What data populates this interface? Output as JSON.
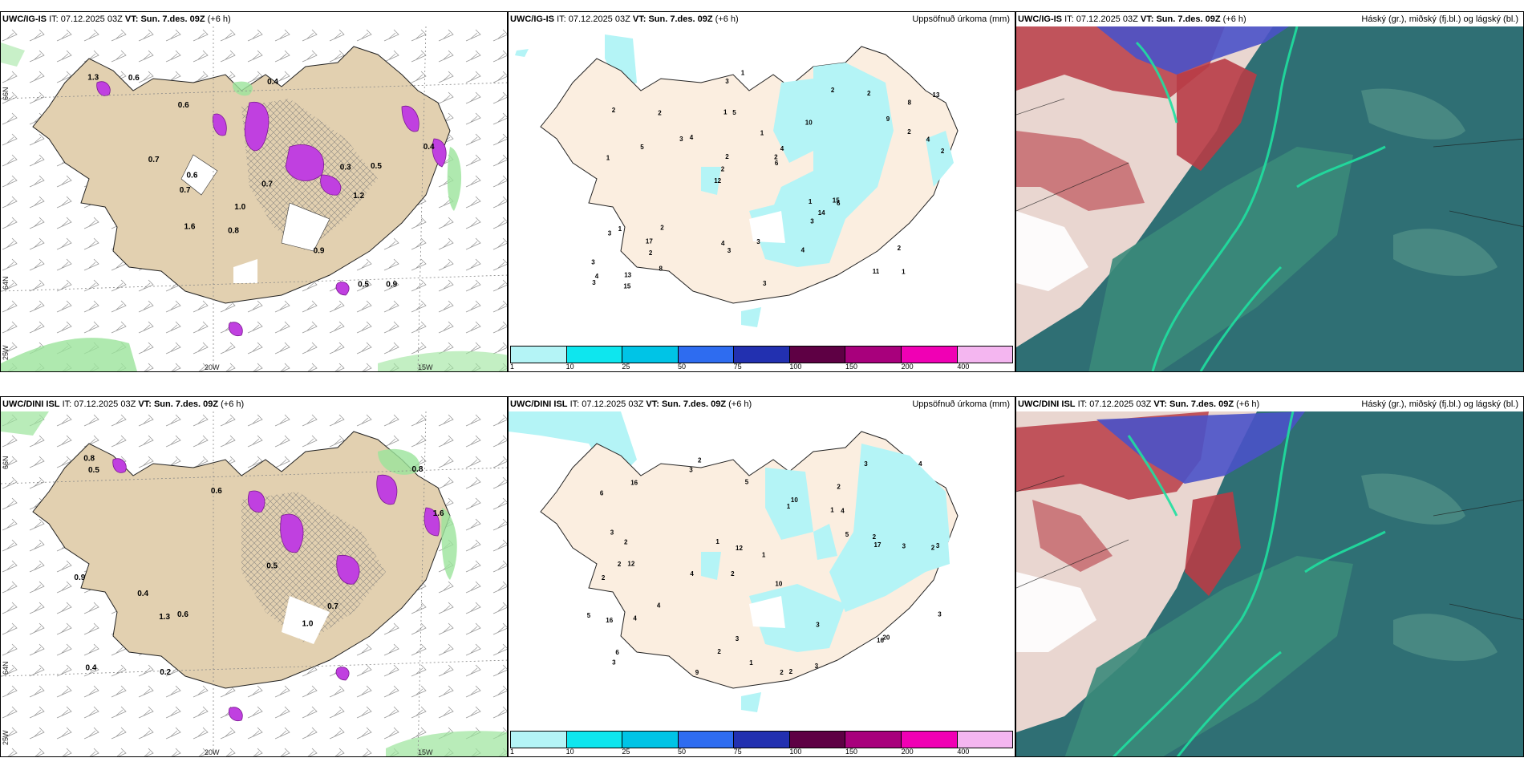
{
  "top_row": {
    "model": "UWC/IG-IS",
    "run": "07.12.2025 03Z",
    "valid": "Sun. 7.des. 09Z",
    "lead": "(+6 h)",
    "precip_title": "Uppsöfnuð úrkoma (mm)",
    "cloud_title": "Háský (gr.), miðský (fj.bl.) og lágský (bl.)",
    "precip_labels": [
      "1",
      "1",
      "8",
      "12",
      "10",
      "13",
      "1",
      "1",
      "1",
      "4",
      "3",
      "2",
      "5",
      "4",
      "6",
      "2",
      "3",
      "2",
      "1",
      "2",
      "2",
      "4",
      "2",
      "2",
      "2",
      "2",
      "11",
      "2",
      "15",
      "3",
      "3",
      "5",
      "3",
      "8",
      "4",
      "2",
      "4",
      "3",
      "6",
      "3",
      "9",
      "13",
      "14",
      "4",
      "17",
      "15",
      "3",
      "3",
      "2",
      "1"
    ],
    "snow_labels": [
      "1.0",
      "0.7",
      "0.6",
      "1.2",
      "0.9",
      "0.6",
      "0.8",
      "0.7",
      "1.6",
      "0.3",
      "0.5",
      "0.4",
      "1.3",
      "0.5",
      "0.6",
      "0.9",
      "0.7",
      "0.4"
    ]
  },
  "bottom_row": {
    "model": "UWC/DINI ISL",
    "run": "07.12.2025 03Z",
    "valid": "Sun. 7.des. 09Z",
    "lead": "(+6 h)",
    "precip_title": "Uppsöfnuð úrkoma (mm)",
    "cloud_title": "Háský (gr.), miðský (fj.bl.) og lágský (bl.)",
    "precip_labels": [
      "2",
      "2",
      "2",
      "2",
      "10",
      "12",
      "6",
      "1",
      "2",
      "1",
      "1",
      "3",
      "3",
      "4",
      "2",
      "2",
      "3",
      "3",
      "5",
      "4",
      "2",
      "2",
      "3",
      "3",
      "5",
      "3",
      "12",
      "17",
      "20",
      "16",
      "16",
      "10",
      "4",
      "1",
      "3",
      "3",
      "2",
      "2",
      "4",
      "5",
      "6",
      "9",
      "3",
      "16",
      "1",
      "4"
    ],
    "snow_labels": [
      "0.5",
      "0.8",
      "0.9",
      "0.8",
      "1.6",
      "1.0",
      "0.6",
      "0.6",
      "0.4",
      "0.7",
      "1.3",
      "0.5",
      "0.2",
      "0.4"
    ]
  },
  "prefixes": {
    "it": "IT:",
    "vt": "VT:"
  },
  "axis": {
    "lat66": "66N",
    "lat64": "64N",
    "lon25": "25W",
    "lon20": "20W",
    "lon15": "15W"
  },
  "colorbar": {
    "labels": [
      "1",
      "10",
      "25",
      "50",
      "75",
      "100",
      "150",
      "200",
      "400"
    ],
    "colors": [
      "#b4f4f6",
      "#0ee6ee",
      "#00c4e6",
      "#2e6cf0",
      "#2230b0",
      "#5e0044",
      "#a8007c",
      "#f000b4",
      "#f4b6f0"
    ]
  },
  "palette": {
    "land": "#e2d0b0",
    "land_precip": "#fbeee0",
    "water": "#ffffff",
    "precip_cyan": "#b4f4f6",
    "snow_magenta": "#c040e0",
    "green": "#9be49b",
    "cloud_teal": "#2f6f74",
    "cloud_red": "#b83c46",
    "cloud_blue": "#4a52c8",
    "cloud_green": "#1fe0a0"
  }
}
